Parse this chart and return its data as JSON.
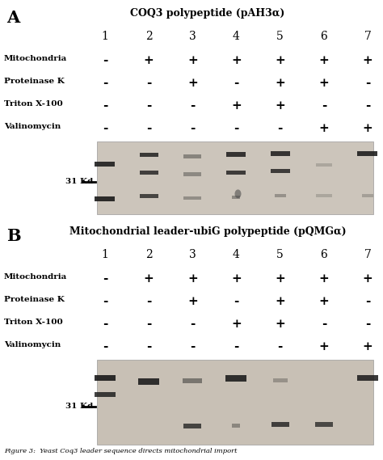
{
  "title_A": "COQ3 polypeptide (pAH3α)",
  "title_B": "Mitochondrial leader-ubiG polypeptide (pQMGα)",
  "label_A": "A",
  "label_B": "B",
  "lane_numbers": [
    "1",
    "2",
    "3",
    "4",
    "5",
    "6",
    "7"
  ],
  "row_labels": [
    "Mitochondria",
    "Proteinase K",
    "Triton X-100",
    "Valinomycin"
  ],
  "panel_A_signs": [
    [
      "-",
      "+",
      "+",
      "+",
      "+",
      "+",
      "+"
    ],
    [
      "-",
      "-",
      "+",
      "-",
      "+",
      "+",
      "-"
    ],
    [
      "-",
      "-",
      "-",
      "+",
      "+",
      "-",
      "-"
    ],
    [
      "-",
      "-",
      "-",
      "-",
      "-",
      "+",
      "+"
    ]
  ],
  "panel_B_signs": [
    [
      "-",
      "+",
      "+",
      "+",
      "+",
      "+",
      "+"
    ],
    [
      "-",
      "-",
      "+",
      "-",
      "+",
      "+",
      "-"
    ],
    [
      "-",
      "-",
      "-",
      "+",
      "+",
      "-",
      "-"
    ],
    [
      "-",
      "-",
      "-",
      "-",
      "-",
      "+",
      "+"
    ]
  ],
  "kd_label": "31 Kd",
  "bg_color": "#ffffff",
  "gel_bg_A": "#ccc5bb",
  "gel_bg_B": "#c8c0b5",
  "band_color": "#1a1a1a",
  "caption": "Figure 3:  Yeast Coq3 leader sequence directs mitochondrial import",
  "fig_width": 4.74,
  "fig_height": 5.69
}
